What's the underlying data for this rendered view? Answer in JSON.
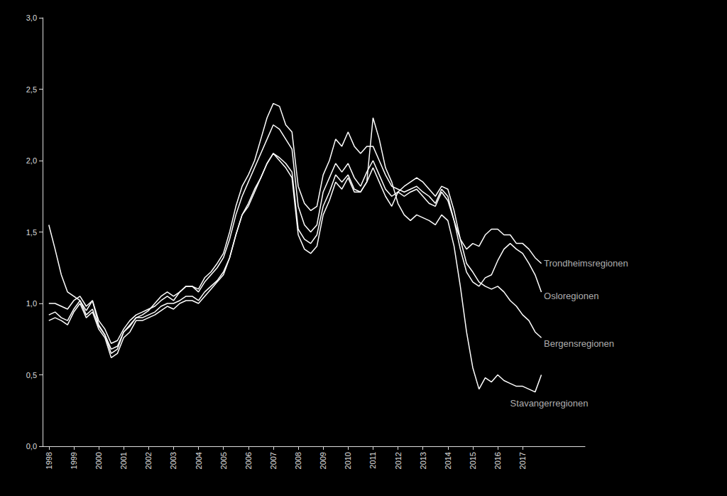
{
  "chart_data": {
    "type": "line",
    "color": "#ffffff",
    "grid": false,
    "x": [
      1998,
      1998.25,
      1998.5,
      1998.75,
      1999,
      1999.25,
      1999.5,
      1999.75,
      2000,
      2000.25,
      2000.5,
      2000.75,
      2001,
      2001.25,
      2001.5,
      2001.75,
      2002,
      2002.25,
      2002.5,
      2002.75,
      2003,
      2003.25,
      2003.5,
      2003.75,
      2004,
      2004.25,
      2004.5,
      2004.75,
      2005,
      2005.25,
      2005.5,
      2005.75,
      2006,
      2006.25,
      2006.5,
      2006.75,
      2007,
      2007.25,
      2007.5,
      2007.75,
      2008,
      2008.25,
      2008.5,
      2008.75,
      2009,
      2009.25,
      2009.5,
      2009.75,
      2010,
      2010.25,
      2010.5,
      2010.75,
      2011,
      2011.25,
      2011.5,
      2011.75,
      2012,
      2012.25,
      2012.5,
      2012.75,
      2013,
      2013.25,
      2013.5,
      2013.75,
      2014,
      2014.25,
      2014.5,
      2014.75,
      2015,
      2015.25,
      2015.5,
      2015.75,
      2016,
      2016.25,
      2016.5,
      2016.75,
      2017,
      2017.25,
      2017.5,
      2017.75
    ],
    "series": [
      {
        "values": [
          1.55,
          1.38,
          1.2,
          1.08,
          1.05,
          1.02,
          0.95,
          1.02,
          0.85,
          0.78,
          0.65,
          0.68,
          0.8,
          0.85,
          0.9,
          0.92,
          0.95,
          1.0,
          1.05,
          1.08,
          1.05,
          1.08,
          1.12,
          1.12,
          1.1,
          1.18,
          1.22,
          1.28,
          1.35,
          1.5,
          1.68,
          1.82,
          1.9,
          2.0,
          2.15,
          2.3,
          2.4,
          2.38,
          2.25,
          2.2,
          1.82,
          1.7,
          1.65,
          1.68,
          1.9,
          2.0,
          2.15,
          2.1,
          2.2,
          2.1,
          2.05,
          2.1,
          2.1,
          2.0,
          1.9,
          1.82,
          1.8,
          1.78,
          1.8,
          1.82,
          1.78,
          1.75,
          1.7,
          1.8,
          1.75,
          1.58,
          1.38,
          1.22,
          1.15,
          1.12,
          1.18,
          1.2,
          1.3,
          1.38,
          1.42,
          1.38,
          1.35,
          1.28,
          1.2,
          1.08
        ]
      },
      {
        "values": [
          1.0,
          1.0,
          0.98,
          0.96,
          1.02,
          1.05,
          0.98,
          1.02,
          0.88,
          0.82,
          0.72,
          0.74,
          0.82,
          0.88,
          0.92,
          0.94,
          0.96,
          0.98,
          1.02,
          1.05,
          1.02,
          1.08,
          1.12,
          1.12,
          1.08,
          1.15,
          1.2,
          1.25,
          1.32,
          1.45,
          1.62,
          1.75,
          1.85,
          1.95,
          2.05,
          2.15,
          2.25,
          2.22,
          2.15,
          2.08,
          1.68,
          1.55,
          1.5,
          1.55,
          1.78,
          1.88,
          1.98,
          1.92,
          1.98,
          1.88,
          1.82,
          1.92,
          2.0,
          1.9,
          1.8,
          1.75,
          1.78,
          1.75,
          1.78,
          1.8,
          1.75,
          1.7,
          1.68,
          1.78,
          1.72,
          1.58,
          1.45,
          1.38,
          1.42,
          1.4,
          1.48,
          1.52,
          1.52,
          1.48,
          1.48,
          1.42,
          1.42,
          1.38,
          1.32,
          1.28
        ]
      },
      {
        "values": [
          0.92,
          0.94,
          0.9,
          0.88,
          0.96,
          1.02,
          0.92,
          0.96,
          0.84,
          0.78,
          0.68,
          0.7,
          0.8,
          0.84,
          0.9,
          0.9,
          0.92,
          0.94,
          0.98,
          1.0,
          1.0,
          1.02,
          1.05,
          1.05,
          1.02,
          1.08,
          1.12,
          1.16,
          1.22,
          1.32,
          1.48,
          1.62,
          1.68,
          1.78,
          1.88,
          1.98,
          2.05,
          2.02,
          1.98,
          1.92,
          1.52,
          1.45,
          1.42,
          1.48,
          1.68,
          1.78,
          1.9,
          1.85,
          1.9,
          1.8,
          1.78,
          1.85,
          1.95,
          1.85,
          1.75,
          1.68,
          1.78,
          1.82,
          1.85,
          1.88,
          1.85,
          1.8,
          1.75,
          1.82,
          1.8,
          1.65,
          1.45,
          1.28,
          1.22,
          1.15,
          1.12,
          1.1,
          1.12,
          1.08,
          1.02,
          0.98,
          0.92,
          0.88,
          0.8,
          0.76
        ]
      },
      {
        "values": [
          0.88,
          0.9,
          0.88,
          0.85,
          0.94,
          1.0,
          0.9,
          0.94,
          0.82,
          0.76,
          0.62,
          0.65,
          0.76,
          0.8,
          0.88,
          0.88,
          0.9,
          0.92,
          0.95,
          0.98,
          0.96,
          1.0,
          1.02,
          1.02,
          1.0,
          1.05,
          1.1,
          1.15,
          1.2,
          1.32,
          1.48,
          1.62,
          1.7,
          1.8,
          1.88,
          1.98,
          2.05,
          2.0,
          1.95,
          1.88,
          1.48,
          1.38,
          1.35,
          1.4,
          1.62,
          1.72,
          1.85,
          1.8,
          1.88,
          1.78,
          1.78,
          1.85,
          2.3,
          2.15,
          1.95,
          1.85,
          1.7,
          1.62,
          1.58,
          1.62,
          1.6,
          1.58,
          1.55,
          1.62,
          1.58,
          1.4,
          1.12,
          0.8,
          0.55,
          0.4,
          0.48,
          0.45,
          0.5,
          0.46,
          0.44,
          0.42,
          0.42,
          0.4,
          0.38,
          0.5
        ]
      }
    ],
    "annotations": [
      {
        "text": "Trondheimsregionen",
        "x": 2017.85,
        "y": 1.28
      },
      {
        "text": "Osloregionen",
        "x": 2017.85,
        "y": 1.05
      },
      {
        "text": "Bergensregionen",
        "x": 2017.85,
        "y": 0.72
      },
      {
        "text": "Stavangerregionen",
        "x": 2016.5,
        "y": 0.3
      }
    ],
    "xlim": [
      1997.75,
      2019.5
    ],
    "xticks": [
      1998,
      1999,
      2000,
      2001,
      2002,
      2003,
      2004,
      2005,
      2006,
      2007,
      2008,
      2009,
      2010,
      2011,
      2012,
      2013,
      2014,
      2015,
      2016,
      2017
    ],
    "ylim": [
      0.0,
      3.0
    ],
    "yticks": [
      {
        "value": 0.0,
        "label": "0,0"
      },
      {
        "value": 0.5,
        "label": "0,5"
      },
      {
        "value": 1.0,
        "label": "1,0"
      },
      {
        "value": 1.5,
        "label": "1,5"
      },
      {
        "value": 2.0,
        "label": "2,0"
      },
      {
        "value": 2.5,
        "label": "2,5"
      },
      {
        "value": 3.0,
        "label": "3,0"
      }
    ]
  }
}
